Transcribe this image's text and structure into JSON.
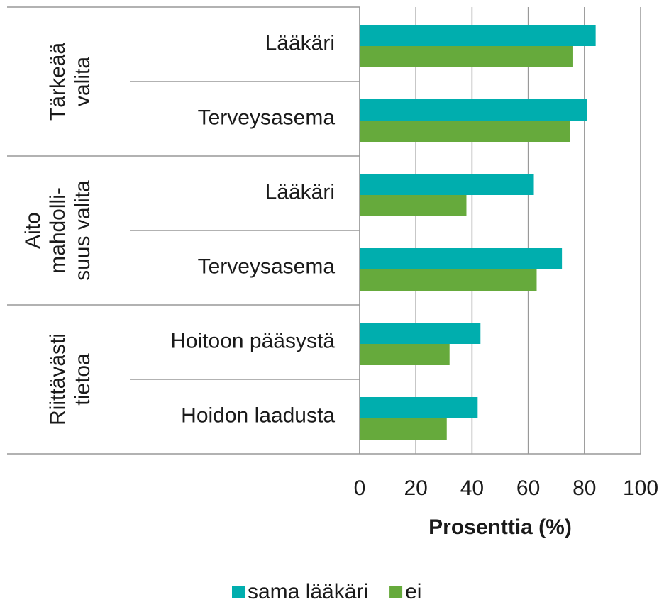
{
  "chart_data": {
    "type": "bar",
    "orientation": "horizontal",
    "groups": [
      {
        "label": [
          "Tärkeää",
          "valita"
        ],
        "categories": [
          "Lääkäri",
          "Terveysasema"
        ]
      },
      {
        "label": [
          "Aito",
          "mahdolli-",
          "suus valita"
        ],
        "categories": [
          "Lääkäri",
          "Terveysasema"
        ]
      },
      {
        "label": [
          "Riittävästi",
          "tietoa"
        ],
        "categories": [
          "Hoitoon pääsystä",
          "Hoidon laadusta"
        ]
      }
    ],
    "series": [
      {
        "name": "sama lääkäri",
        "color": "#00aeae",
        "values": [
          84,
          81,
          62,
          72,
          43,
          42
        ]
      },
      {
        "name": "ei",
        "color": "#66aa3c",
        "values": [
          76,
          75,
          38,
          63,
          32,
          31
        ]
      }
    ],
    "xlabel": "Prosenttia (%)",
    "xlim": [
      0,
      100
    ],
    "xticks": [
      0,
      20,
      40,
      60,
      80,
      100
    ],
    "grid": true,
    "legend": "bottom"
  }
}
